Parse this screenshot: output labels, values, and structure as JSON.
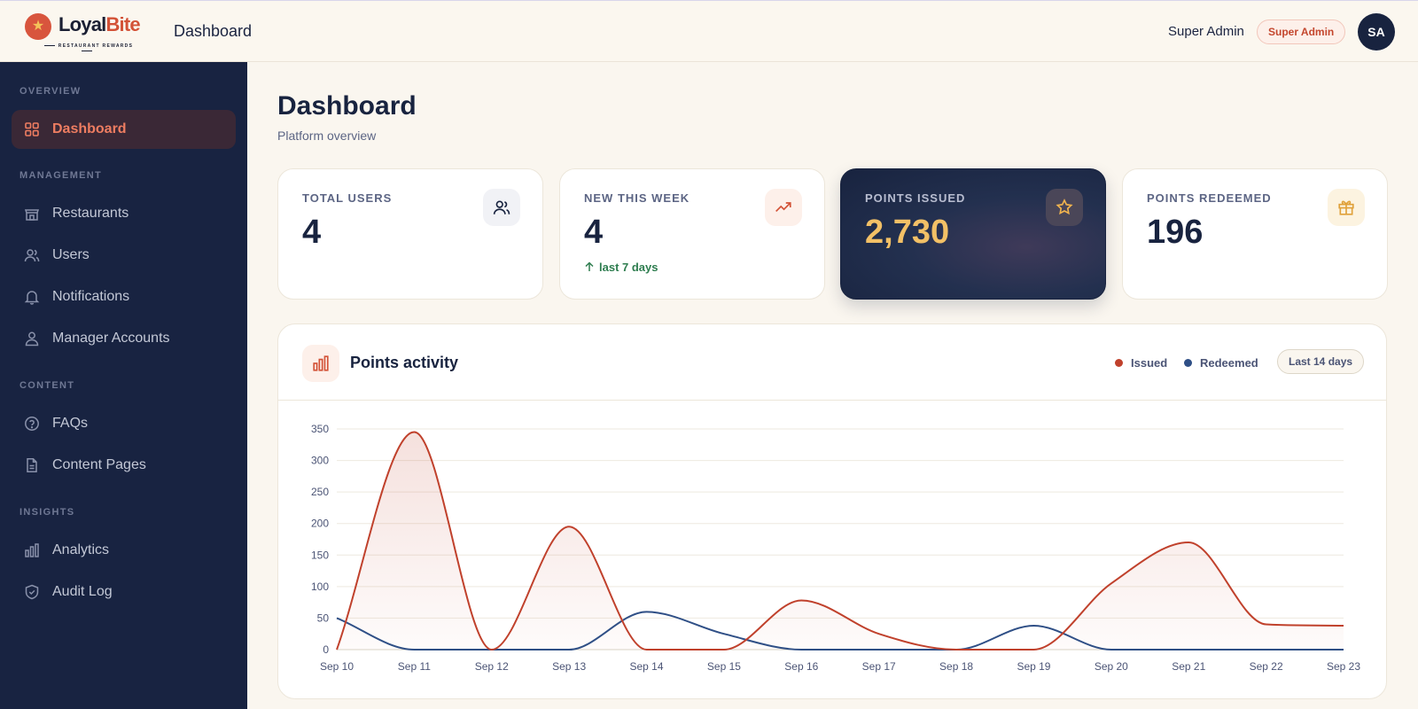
{
  "header": {
    "logo_name_part1": "Loyal",
    "logo_name_part2": "Bite",
    "logo_tagline": "RESTAURANT REWARDS",
    "page_title": "Dashboard",
    "user_name": "Super Admin",
    "role_badge": "Super Admin",
    "avatar_initials": "SA"
  },
  "sidebar": {
    "sections": [
      {
        "label": "OVERVIEW",
        "items": [
          {
            "label": "Dashboard",
            "icon": "grid-icon",
            "active": true
          }
        ]
      },
      {
        "label": "MANAGEMENT",
        "items": [
          {
            "label": "Restaurants",
            "icon": "store-icon"
          },
          {
            "label": "Users",
            "icon": "users-icon"
          },
          {
            "label": "Notifications",
            "icon": "bell-icon"
          },
          {
            "label": "Manager Accounts",
            "icon": "user-icon"
          }
        ]
      },
      {
        "label": "CONTENT",
        "items": [
          {
            "label": "FAQs",
            "icon": "help-circle-icon"
          },
          {
            "label": "Content Pages",
            "icon": "file-text-icon"
          }
        ]
      },
      {
        "label": "INSIGHTS",
        "items": [
          {
            "label": "Analytics",
            "icon": "bar-chart-icon"
          },
          {
            "label": "Audit Log",
            "icon": "shield-icon"
          }
        ]
      }
    ]
  },
  "main": {
    "title": "Dashboard",
    "subtitle": "Platform overview"
  },
  "stats": [
    {
      "label": "TOTAL USERS",
      "value": "4",
      "icon": "users-icon"
    },
    {
      "label": "NEW THIS WEEK",
      "value": "4",
      "icon": "trending-up-icon",
      "trend": "last 7 days"
    },
    {
      "label": "POINTS ISSUED",
      "value": "2,730",
      "icon": "star-icon"
    },
    {
      "label": "POINTS REDEEMED",
      "value": "196",
      "icon": "gift-icon"
    }
  ],
  "chart_card": {
    "title": "Points activity",
    "legend_issued": "Issued",
    "legend_redeemed": "Redeemed",
    "range": "Last 14 days"
  },
  "colors": {
    "issued": "#c0412c",
    "redeemed": "#2f4f86",
    "accent": "#d8553d",
    "navy": "#182341"
  },
  "chart_data": {
    "type": "area",
    "categories": [
      "Sep 10",
      "Sep 11",
      "Sep 12",
      "Sep 13",
      "Sep 14",
      "Sep 15",
      "Sep 16",
      "Sep 17",
      "Sep 18",
      "Sep 19",
      "Sep 20",
      "Sep 21",
      "Sep 22",
      "Sep 23"
    ],
    "series": [
      {
        "name": "Issued",
        "values": [
          0,
          345,
          0,
          195,
          0,
          0,
          78,
          25,
          0,
          0,
          105,
          170,
          40,
          38
        ]
      },
      {
        "name": "Redeemed",
        "values": [
          50,
          0,
          0,
          0,
          60,
          25,
          0,
          0,
          0,
          38,
          0,
          0,
          0,
          0
        ]
      }
    ],
    "yticks": [
      0,
      50,
      100,
      150,
      200,
      250,
      300,
      350
    ],
    "ylim": [
      0,
      350
    ],
    "grid": true,
    "legend": "top-right"
  }
}
